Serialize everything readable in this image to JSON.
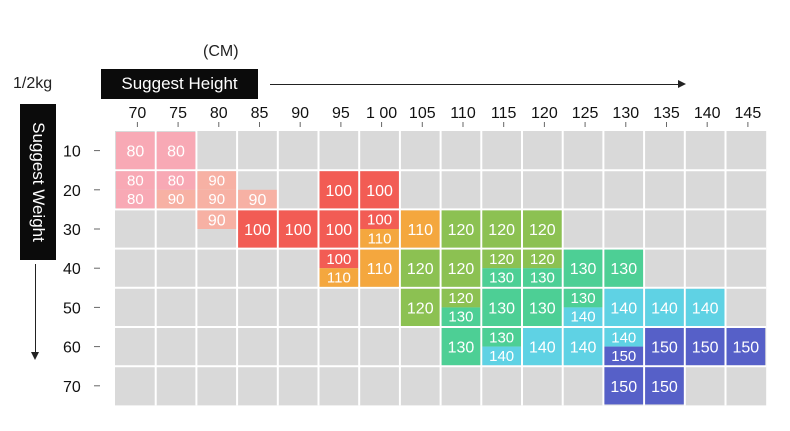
{
  "labels": {
    "unit_cm": "(CM)",
    "unit_weight": "1/2kg",
    "height_title": "Suggest Height",
    "weight_title": "Suggest Weight"
  },
  "chart_data": {
    "type": "table",
    "x_ticks": [
      "70",
      "75",
      "80",
      "85",
      "90",
      "95",
      "1 00",
      "105",
      "110",
      "115",
      "120",
      "125",
      "130",
      "135",
      "140",
      "145"
    ],
    "y_ticks": [
      "10",
      "20",
      "30",
      "40",
      "50",
      "60",
      "70"
    ],
    "grid": true,
    "size_colors": {
      "80": "#f8a9b5",
      "90": "#f7b1a4",
      "100": "#f25c54",
      "110": "#f4a73e",
      "120": "#8cc152",
      "130": "#4dcf95",
      "140": "#5fd2e4",
      "150": "#5660c8"
    },
    "cells": [
      {
        "row": 0,
        "col": 0,
        "sizes": [
          "80"
        ]
      },
      {
        "row": 0,
        "col": 1,
        "sizes": [
          "80"
        ]
      },
      {
        "row": 1,
        "col": 0,
        "sizes": [
          "80",
          "80"
        ]
      },
      {
        "row": 1,
        "col": 1,
        "sizes": [
          "80",
          "90"
        ]
      },
      {
        "row": 1,
        "col": 2,
        "sizes": [
          "90",
          "90"
        ]
      },
      {
        "row": 1,
        "col": 3,
        "sizes": [
          "90"
        ],
        "part": "bottom"
      },
      {
        "row": 1,
        "col": 5,
        "sizes": [
          "100"
        ]
      },
      {
        "row": 1,
        "col": 6,
        "sizes": [
          "100"
        ]
      },
      {
        "row": 2,
        "col": 2,
        "sizes": [
          "90"
        ],
        "part": "top"
      },
      {
        "row": 2,
        "col": 3,
        "sizes": [
          "100"
        ]
      },
      {
        "row": 2,
        "col": 4,
        "sizes": [
          "100"
        ]
      },
      {
        "row": 2,
        "col": 5,
        "sizes": [
          "100"
        ]
      },
      {
        "row": 2,
        "col": 6,
        "sizes": [
          "100",
          "110"
        ]
      },
      {
        "row": 2,
        "col": 7,
        "sizes": [
          "110"
        ]
      },
      {
        "row": 2,
        "col": 8,
        "sizes": [
          "120"
        ]
      },
      {
        "row": 2,
        "col": 9,
        "sizes": [
          "120"
        ]
      },
      {
        "row": 2,
        "col": 10,
        "sizes": [
          "120"
        ]
      },
      {
        "row": 3,
        "col": 5,
        "sizes": [
          "100",
          "110"
        ]
      },
      {
        "row": 3,
        "col": 6,
        "sizes": [
          "110"
        ]
      },
      {
        "row": 3,
        "col": 7,
        "sizes": [
          "120"
        ]
      },
      {
        "row": 3,
        "col": 8,
        "sizes": [
          "120"
        ]
      },
      {
        "row": 3,
        "col": 9,
        "sizes": [
          "120",
          "130"
        ]
      },
      {
        "row": 3,
        "col": 10,
        "sizes": [
          "120",
          "130"
        ]
      },
      {
        "row": 3,
        "col": 11,
        "sizes": [
          "130"
        ]
      },
      {
        "row": 3,
        "col": 12,
        "sizes": [
          "130"
        ]
      },
      {
        "row": 4,
        "col": 7,
        "sizes": [
          "120"
        ]
      },
      {
        "row": 4,
        "col": 8,
        "sizes": [
          "120",
          "130"
        ]
      },
      {
        "row": 4,
        "col": 9,
        "sizes": [
          "130"
        ]
      },
      {
        "row": 4,
        "col": 10,
        "sizes": [
          "130"
        ]
      },
      {
        "row": 4,
        "col": 11,
        "sizes": [
          "130",
          "140"
        ]
      },
      {
        "row": 4,
        "col": 12,
        "sizes": [
          "140"
        ]
      },
      {
        "row": 4,
        "col": 13,
        "sizes": [
          "140"
        ]
      },
      {
        "row": 4,
        "col": 14,
        "sizes": [
          "140"
        ]
      },
      {
        "row": 5,
        "col": 8,
        "sizes": [
          "130"
        ]
      },
      {
        "row": 5,
        "col": 9,
        "sizes": [
          "130",
          "140"
        ]
      },
      {
        "row": 5,
        "col": 10,
        "sizes": [
          "140"
        ]
      },
      {
        "row": 5,
        "col": 11,
        "sizes": [
          "140"
        ]
      },
      {
        "row": 5,
        "col": 12,
        "sizes": [
          "140",
          "150"
        ]
      },
      {
        "row": 5,
        "col": 13,
        "sizes": [
          "150"
        ]
      },
      {
        "row": 5,
        "col": 14,
        "sizes": [
          "150"
        ]
      },
      {
        "row": 5,
        "col": 15,
        "sizes": [
          "150"
        ]
      },
      {
        "row": 6,
        "col": 12,
        "sizes": [
          "150"
        ]
      },
      {
        "row": 6,
        "col": 13,
        "sizes": [
          "150"
        ]
      }
    ]
  }
}
